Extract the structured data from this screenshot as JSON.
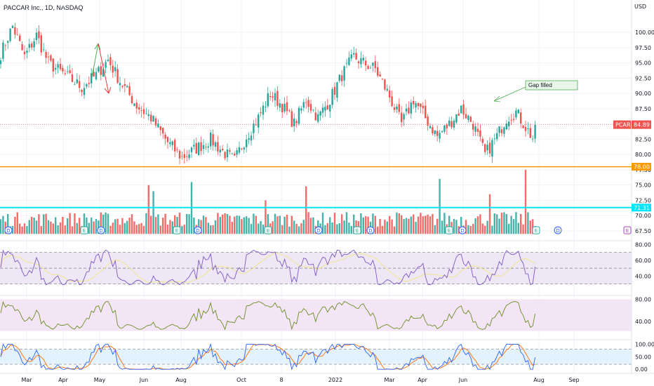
{
  "header": {
    "title": "PACCAR Inc., 1D, NASDAQ"
  },
  "price_axis": {
    "currency": "USD"
  },
  "badges": {
    "symbol": "PCAR",
    "last_price": "84.89",
    "support": "78.00",
    "volume_level": "71.31"
  },
  "annotation": {
    "text": "Gap filled"
  },
  "colors": {
    "up": "#26a69a",
    "down": "#ef5350",
    "support_line": "#ff9800",
    "volume_line": "#00e5ff",
    "rsi_line": "#7e57c2",
    "rsi_ma": "#f0e68c",
    "osc_line": "#6b8e23",
    "stoch_k": "#2962ff",
    "stoch_d": "#ff6d00"
  },
  "chart_data": [
    {
      "type": "candlestick",
      "name": "price",
      "ylim": [
        66,
        103
      ],
      "yticks": [
        "100.00",
        "97.50",
        "95.00",
        "92.50",
        "90.00",
        "87.50",
        "85.00",
        "82.50",
        "80.00",
        "77.50",
        "75.00",
        "72.50",
        "70.00",
        "67.50"
      ],
      "x_labels": [
        "Mar",
        "Apr",
        "May",
        "Jun",
        "Aug",
        "Oct",
        "8",
        "2022",
        "Mar",
        "Apr",
        "Jun",
        "Aug",
        "Sep"
      ],
      "waypoints": [
        [
          0,
          96.5
        ],
        [
          5,
          101
        ],
        [
          10,
          96
        ],
        [
          15,
          99.5
        ],
        [
          20,
          95
        ],
        [
          27,
          93
        ],
        [
          34,
          91
        ],
        [
          40,
          93
        ],
        [
          45,
          95.5
        ],
        [
          50,
          92
        ],
        [
          57,
          88
        ],
        [
          63,
          86
        ],
        [
          70,
          82
        ],
        [
          76,
          79.5
        ],
        [
          82,
          81
        ],
        [
          88,
          82.5
        ],
        [
          93,
          80.5
        ],
        [
          98,
          79
        ],
        [
          103,
          83
        ],
        [
          108,
          86
        ],
        [
          113,
          90
        ],
        [
          118,
          88
        ],
        [
          123,
          85
        ],
        [
          128,
          89
        ],
        [
          133,
          86
        ],
        [
          138,
          89
        ],
        [
          143,
          93
        ],
        [
          148,
          96
        ],
        [
          152,
          95
        ],
        [
          157,
          94
        ],
        [
          163,
          89.5
        ],
        [
          168,
          85
        ],
        [
          173,
          89
        ],
        [
          178,
          86
        ],
        [
          183,
          83
        ],
        [
          188,
          85
        ],
        [
          193,
          87.5
        ],
        [
          198,
          85
        ],
        [
          203,
          80
        ],
        [
          208,
          83
        ],
        [
          212,
          86
        ],
        [
          216,
          87
        ],
        [
          220,
          84.5
        ],
        [
          225,
          81.5
        ]
      ],
      "candle_count": 225,
      "last_price": 84.89,
      "support_level": 78.0,
      "annotations": [
        {
          "text": "Gap filled"
        }
      ]
    },
    {
      "type": "bar",
      "name": "volume",
      "threshold": 71.31,
      "spikes": [
        [
          62,
          75
        ],
        [
          64,
          74
        ],
        [
          80,
          75.5
        ],
        [
          111,
          72.5
        ],
        [
          128,
          74.8
        ],
        [
          184,
          76
        ],
        [
          205,
          73.5
        ],
        [
          220,
          77.5
        ]
      ],
      "event_markers": [
        "D",
        "D",
        "E",
        "D",
        "E",
        "D",
        "E",
        "D",
        "E",
        "D",
        "E",
        "D",
        "E",
        "D",
        "E",
        "D",
        "E",
        "D"
      ]
    },
    {
      "type": "line",
      "name": "rsi",
      "ylim": [
        20,
        82
      ],
      "yticks": [
        "80.00",
        "60.00",
        "40.00"
      ],
      "bands": [
        70,
        50,
        30
      ]
    },
    {
      "type": "line",
      "name": "oscillator",
      "ylim": [
        15,
        83
      ],
      "yticks": [
        "80.00",
        "40.00"
      ]
    },
    {
      "type": "line",
      "name": "stochastic",
      "ylim": [
        -5,
        110
      ],
      "yticks": [
        "100.00",
        "50.00",
        "0.00"
      ],
      "bands": [
        80,
        20
      ]
    }
  ]
}
